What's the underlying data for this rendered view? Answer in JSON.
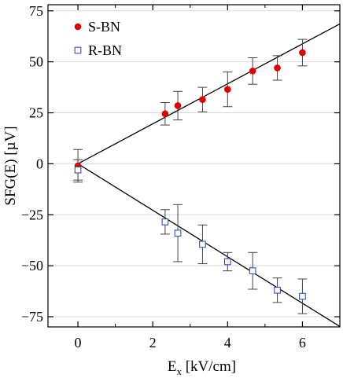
{
  "chart_data": {
    "type": "scatter",
    "xlabel": "E",
    "xlabel_sub": "x",
    "xlabel_unit": " [kV/cm]",
    "ylabel": "SFG(E) [µV]",
    "xlim": [
      -0.8,
      7
    ],
    "ylim": [
      -80,
      78
    ],
    "xticks": [
      0,
      2,
      4,
      6
    ],
    "xtick_labels": [
      "0",
      "2",
      "4",
      "6"
    ],
    "yticks": [
      75,
      50,
      25,
      0,
      -25,
      -50,
      -75
    ],
    "ytick_labels": [
      "75",
      "50",
      "25",
      "0",
      "−25",
      "−50",
      "−75"
    ],
    "grid": "horizontal",
    "legend_position": "top-left",
    "series": [
      {
        "name": "S-BN",
        "marker": "filled-circle",
        "color": "#e00000",
        "points": [
          {
            "x": 0,
            "y": -1,
            "err": 8
          },
          {
            "x": 2.33,
            "y": 24.5,
            "err": 5.5
          },
          {
            "x": 2.67,
            "y": 28.5,
            "err": 7
          },
          {
            "x": 3.33,
            "y": 31.5,
            "err": 6
          },
          {
            "x": 4.0,
            "y": 36.5,
            "err": 8.5
          },
          {
            "x": 4.67,
            "y": 45.5,
            "err": 6.5
          },
          {
            "x": 5.33,
            "y": 47.0,
            "err": 6
          },
          {
            "x": 6.0,
            "y": 54.5,
            "err": 6.5
          }
        ]
      },
      {
        "name": "R-BN",
        "marker": "open-square",
        "color": "#3a4bc4",
        "points": [
          {
            "x": 0,
            "y": -3,
            "err": 5
          },
          {
            "x": 2.33,
            "y": -28.5,
            "err": 6
          },
          {
            "x": 2.67,
            "y": -34.0,
            "err": 14
          },
          {
            "x": 3.33,
            "y": -39.5,
            "err": 9.5
          },
          {
            "x": 4.0,
            "y": -48.0,
            "err": 4.5
          },
          {
            "x": 4.67,
            "y": -52.5,
            "err": 9
          },
          {
            "x": 5.33,
            "y": -62.0,
            "err": 6
          },
          {
            "x": 6.0,
            "y": -65.0,
            "err": 8.5
          }
        ]
      }
    ],
    "fit_lines": [
      {
        "slope": 9.8,
        "intercept": 0
      },
      {
        "slope": -11.4,
        "intercept": 0
      }
    ]
  }
}
